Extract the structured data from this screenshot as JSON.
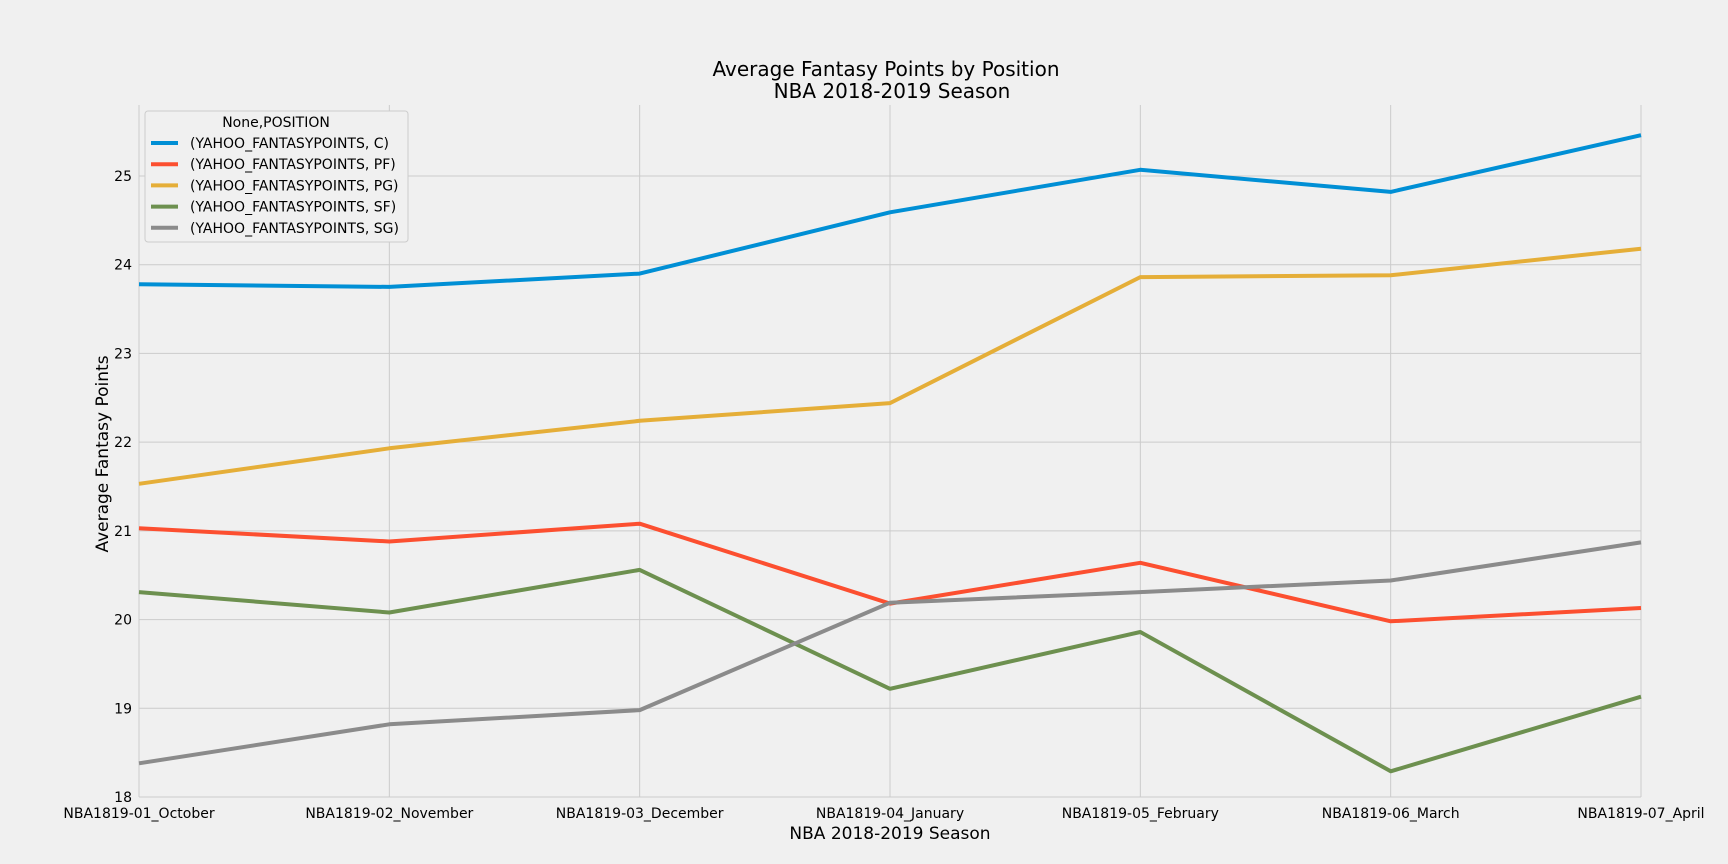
{
  "chart_data": {
    "type": "line",
    "title": "Average Fantasy Points by Position",
    "subtitle": "NBA 2018-2019 Season",
    "xlabel": "NBA 2018-2019 Season",
    "ylabel": "Average Fantasy Points",
    "categories": [
      "NBA1819-01_October",
      "NBA1819-02_November",
      "NBA1819-03_December",
      "NBA1819-04_January",
      "NBA1819-05_February",
      "NBA1819-06_March",
      "NBA1819-07_April"
    ],
    "ylim": [
      18,
      25.8
    ],
    "yticks": [
      18,
      19,
      20,
      21,
      22,
      23,
      24,
      25
    ],
    "grid": true,
    "legend": {
      "title": "None,POSITION",
      "position": "top-left"
    },
    "series": [
      {
        "name": "(YAHOO_FANTASYPOINTS, C)",
        "color": "#008fd5",
        "values": [
          23.78,
          23.75,
          23.9,
          24.59,
          25.07,
          24.82,
          25.46
        ]
      },
      {
        "name": "(YAHOO_FANTASYPOINTS, PF)",
        "color": "#fc4f30",
        "values": [
          21.03,
          20.88,
          21.08,
          20.18,
          20.64,
          19.98,
          20.13
        ]
      },
      {
        "name": "(YAHOO_FANTASYPOINTS, PG)",
        "color": "#e5ae38",
        "values": [
          21.53,
          21.93,
          22.24,
          22.44,
          23.86,
          23.88,
          24.18
        ]
      },
      {
        "name": "(YAHOO_FANTASYPOINTS, SF)",
        "color": "#6d904f",
        "values": [
          20.31,
          20.08,
          20.56,
          19.22,
          19.86,
          18.29,
          19.13
        ]
      },
      {
        "name": "(YAHOO_FANTASYPOINTS, SG)",
        "color": "#8b8b8b",
        "values": [
          18.38,
          18.82,
          18.98,
          20.19,
          20.31,
          20.44,
          20.87
        ]
      }
    ]
  }
}
